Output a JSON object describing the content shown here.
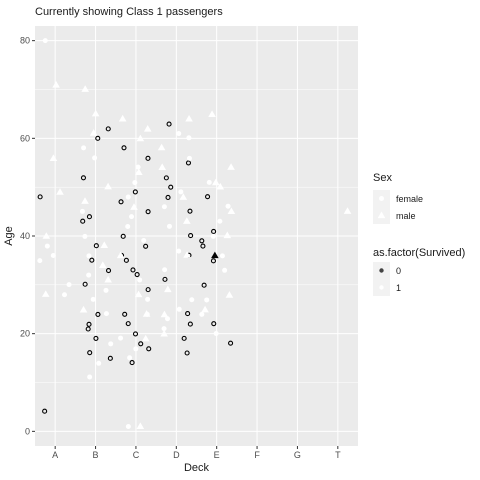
{
  "chart_data": {
    "type": "scatter",
    "title": "Currently showing Class 1 passengers",
    "xlabel": "Deck",
    "ylabel": "Age",
    "categories": [
      "A",
      "B",
      "C",
      "D",
      "E",
      "F",
      "G",
      "T"
    ],
    "ylim": [
      -3,
      83
    ],
    "yticks": [
      0,
      20,
      40,
      60,
      80
    ],
    "grid": true,
    "legend_position": "right",
    "legends": [
      {
        "title": "Sex",
        "entries": [
          {
            "label": "female",
            "shape": "circle"
          },
          {
            "label": "male",
            "shape": "triangle"
          }
        ]
      },
      {
        "title": "as.factor(Survived)",
        "entries": [
          {
            "label": "0",
            "color": "#000000"
          },
          {
            "label": "1",
            "color": "#ffffff"
          }
        ]
      }
    ],
    "colors": {
      "panel": "#ebebeb",
      "grid": "#ffffff",
      "died": "#000000",
      "survived": "#ffffff"
    },
    "series": [
      {
        "sex": "female",
        "survived": "0",
        "points": [
          [
            "A",
            48
          ],
          [
            "A",
            4
          ],
          [
            "B",
            62
          ],
          [
            "B",
            60
          ],
          [
            "B",
            52
          ],
          [
            "B",
            44
          ],
          [
            "B",
            43
          ],
          [
            "B",
            38
          ],
          [
            "B",
            35
          ],
          [
            "B",
            33
          ],
          [
            "B",
            30
          ],
          [
            "B",
            24
          ],
          [
            "B",
            22
          ],
          [
            "B",
            21
          ],
          [
            "B",
            19
          ],
          [
            "B",
            16
          ],
          [
            "B",
            15
          ],
          [
            "C",
            58
          ],
          [
            "C",
            56
          ],
          [
            "C",
            49
          ],
          [
            "C",
            47
          ],
          [
            "C",
            45
          ],
          [
            "C",
            40
          ],
          [
            "C",
            38
          ],
          [
            "C",
            36
          ],
          [
            "C",
            35
          ],
          [
            "C",
            33
          ],
          [
            "C",
            32
          ],
          [
            "C",
            29
          ],
          [
            "C",
            24
          ],
          [
            "C",
            22
          ],
          [
            "C",
            20
          ],
          [
            "C",
            18
          ],
          [
            "C",
            17
          ],
          [
            "C",
            14
          ],
          [
            "D",
            63
          ],
          [
            "D",
            55
          ],
          [
            "D",
            52
          ],
          [
            "D",
            50
          ],
          [
            "D",
            48
          ],
          [
            "D",
            45
          ],
          [
            "D",
            40
          ],
          [
            "D",
            36
          ],
          [
            "D",
            31
          ],
          [
            "D",
            24
          ],
          [
            "D",
            22
          ],
          [
            "D",
            19
          ],
          [
            "D",
            16
          ],
          [
            "E",
            48
          ],
          [
            "E",
            41
          ],
          [
            "E",
            39
          ],
          [
            "E",
            38
          ],
          [
            "E",
            35
          ],
          [
            "E",
            30
          ],
          [
            "E",
            22
          ],
          [
            "E",
            18
          ]
        ]
      },
      {
        "sex": "female",
        "survived": "1",
        "points": [
          [
            "A",
            80
          ],
          [
            "A",
            38
          ],
          [
            "A",
            36
          ],
          [
            "A",
            35
          ],
          [
            "A",
            30
          ],
          [
            "A",
            28
          ],
          [
            "B",
            58
          ],
          [
            "B",
            56
          ],
          [
            "B",
            45
          ],
          [
            "B",
            40
          ],
          [
            "B",
            36
          ],
          [
            "B",
            32
          ],
          [
            "B",
            29
          ],
          [
            "B",
            27
          ],
          [
            "B",
            24
          ],
          [
            "B",
            18
          ],
          [
            "B",
            14
          ],
          [
            "B",
            11
          ],
          [
            "C",
            54
          ],
          [
            "C",
            51
          ],
          [
            "C",
            48
          ],
          [
            "C",
            44
          ],
          [
            "C",
            42
          ],
          [
            "C",
            39
          ],
          [
            "C",
            31
          ],
          [
            "C",
            27
          ],
          [
            "C",
            24
          ],
          [
            "C",
            19
          ],
          [
            "C",
            17
          ],
          [
            "C",
            15
          ],
          [
            "C",
            1
          ],
          [
            "D",
            61
          ],
          [
            "D",
            60
          ],
          [
            "D",
            56
          ],
          [
            "D",
            49
          ],
          [
            "D",
            46
          ],
          [
            "D",
            42
          ],
          [
            "D",
            37
          ],
          [
            "D",
            33
          ],
          [
            "D",
            27
          ],
          [
            "D",
            25
          ],
          [
            "D",
            23
          ],
          [
            "D",
            21
          ],
          [
            "E",
            51
          ],
          [
            "E",
            46
          ],
          [
            "E",
            43
          ],
          [
            "E",
            40
          ],
          [
            "E",
            36
          ],
          [
            "E",
            33
          ],
          [
            "E",
            27
          ],
          [
            "E",
            24
          ],
          [
            "E",
            20
          ]
        ]
      },
      {
        "sex": "male",
        "survived": "0",
        "points": [
          [
            "E",
            36
          ]
        ]
      },
      {
        "sex": "male",
        "survived": "1",
        "points": [
          [
            "A",
            71
          ],
          [
            "A",
            56
          ],
          [
            "A",
            49
          ],
          [
            "A",
            40
          ],
          [
            "A",
            28
          ],
          [
            "B",
            70
          ],
          [
            "B",
            65
          ],
          [
            "B",
            61
          ],
          [
            "B",
            50
          ],
          [
            "B",
            47
          ],
          [
            "B",
            38
          ],
          [
            "B",
            34
          ],
          [
            "B",
            31
          ],
          [
            "B",
            25
          ],
          [
            "C",
            64
          ],
          [
            "C",
            62
          ],
          [
            "C",
            60
          ],
          [
            "C",
            53
          ],
          [
            "C",
            46
          ],
          [
            "C",
            36
          ],
          [
            "C",
            28
          ],
          [
            "C",
            24
          ],
          [
            "C",
            19
          ],
          [
            "C",
            1
          ],
          [
            "D",
            64
          ],
          [
            "D",
            58
          ],
          [
            "D",
            54
          ],
          [
            "D",
            48
          ],
          [
            "D",
            43
          ],
          [
            "D",
            36
          ],
          [
            "D",
            29
          ],
          [
            "D",
            24
          ],
          [
            "D",
            20
          ],
          [
            "E",
            65
          ],
          [
            "E",
            54
          ],
          [
            "E",
            51
          ],
          [
            "E",
            50
          ],
          [
            "E",
            45
          ],
          [
            "E",
            40
          ],
          [
            "E",
            28
          ],
          [
            "E",
            25
          ],
          [
            "T",
            45
          ]
        ]
      }
    ]
  }
}
